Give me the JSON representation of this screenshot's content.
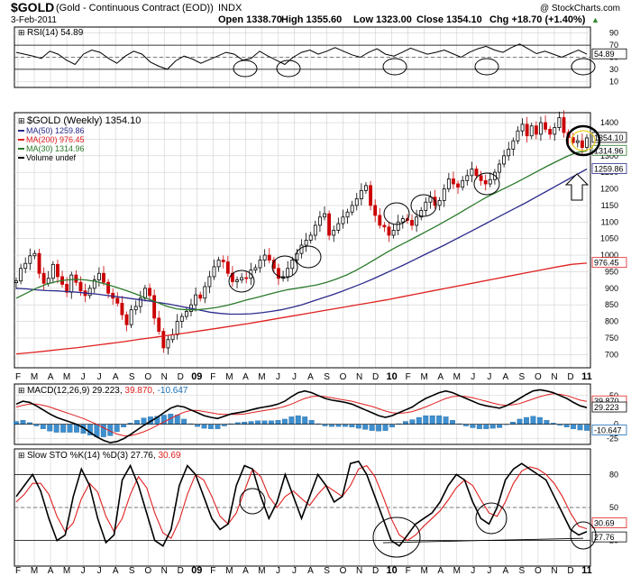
{
  "header": {
    "symbol": "$GOLD",
    "name": "(Gold - Continuous Contract (EOD))",
    "exchange": "INDX",
    "watermark": "@ StockCharts.com",
    "date": "3-Feb-2011",
    "open": "Open 1338.70",
    "high": "High 1355.60",
    "low": "Low 1323.00",
    "close": "Close 1354.10",
    "chg": "Chg +18.70 (+1.40%)",
    "chg_arrow": "▲"
  },
  "colors": {
    "up": "#000000",
    "down": "#cc0000",
    "ma50": "#2b2b8c",
    "ma200": "#e02020",
    "ma30": "#2a7a2a",
    "rsi_fill": "#5a8a5a",
    "macd_hist": "#3d8fcf",
    "grid": "#d0d0d0"
  },
  "x_axis": {
    "labels": [
      "F",
      "M",
      "A",
      "M",
      "J",
      "J",
      "A",
      "S",
      "O",
      "N",
      "D",
      "09",
      "F",
      "M",
      "A",
      "M",
      "J",
      "J",
      "A",
      "S",
      "O",
      "N",
      "D",
      "10",
      "F",
      "M",
      "A",
      "M",
      "J",
      "J",
      "A",
      "S",
      "O",
      "N",
      "D",
      "11"
    ]
  },
  "chart_data": [
    {
      "type": "line",
      "title": "RSI(14) 54.89",
      "ylim": [
        0,
        100
      ],
      "ticks": [
        "90",
        "70",
        "50",
        "30",
        "10"
      ],
      "levels": [
        70,
        30
      ],
      "value_label": "54.89",
      "values": [
        58,
        55,
        52,
        48,
        60,
        55,
        45,
        38,
        55,
        62,
        58,
        48,
        40,
        52,
        60,
        55,
        42,
        35,
        30,
        44,
        52,
        47,
        40,
        46,
        52,
        58,
        55,
        45,
        48,
        60,
        52,
        45,
        38,
        50,
        58,
        62,
        55,
        60,
        66,
        60,
        54,
        50,
        58,
        64,
        55,
        52,
        58,
        65,
        60,
        55,
        58,
        62,
        56,
        50,
        58,
        64,
        68,
        62,
        58,
        66,
        72,
        64,
        56,
        60,
        55,
        50,
        56,
        62,
        55
      ]
    },
    {
      "type": "candlestick",
      "title": "$GOLD (Weekly) 1354.10",
      "legend": [
        "MA(50) 1259.86",
        "MA(200) 976.45",
        "MA(30) 1314.96",
        "Volume undef"
      ],
      "ylim": [
        660,
        1430
      ],
      "ticks": [
        "1400",
        "1350",
        "1300",
        "1250",
        "1200",
        "1150",
        "1100",
        "1050",
        "1000",
        "950",
        "900",
        "850",
        "800",
        "750",
        "700"
      ],
      "value_labels": [
        "1354.10",
        "1314.96",
        "1259.86",
        "976.45"
      ],
      "closes": [
        922,
        960,
        975,
        998,
        1005,
        945,
        915,
        930,
        972,
        935,
        912,
        888,
        940,
        918,
        892,
        878,
        900,
        925,
        945,
        918,
        885,
        870,
        855,
        820,
        790,
        835,
        845,
        870,
        900,
        878,
        810,
        770,
        720,
        745,
        760,
        800,
        815,
        830,
        850,
        880,
        870,
        905,
        935,
        965,
        985,
        980,
        945,
        920,
        925,
        932,
        930,
        955,
        962,
        985,
        1000,
        985,
        960,
        930,
        935,
        960,
        985,
        1005,
        1030,
        1045,
        1060,
        1090,
        1115,
        1125,
        1060,
        1075,
        1095,
        1115,
        1130,
        1150,
        1170,
        1195,
        1210,
        1150,
        1120,
        1090,
        1085,
        1060,
        1075,
        1100,
        1110,
        1105,
        1090,
        1115,
        1135,
        1160,
        1175,
        1150,
        1165,
        1200,
        1230,
        1215,
        1205,
        1225,
        1240,
        1260,
        1240,
        1225,
        1215,
        1228,
        1250,
        1275,
        1300,
        1320,
        1345,
        1375,
        1395,
        1360,
        1390,
        1365,
        1400,
        1380,
        1365,
        1385,
        1415,
        1370,
        1355,
        1340,
        1345,
        1325,
        1354
      ],
      "ma50": [
        900,
        898,
        895,
        893,
        892,
        890,
        888,
        885,
        882,
        878,
        874,
        870,
        866,
        862,
        857,
        852,
        846,
        840,
        834,
        828,
        824,
        822,
        822,
        823,
        826,
        830,
        835,
        842,
        850,
        860,
        870,
        880,
        891,
        903,
        915,
        928,
        942,
        956,
        970,
        985,
        1000,
        1015,
        1030,
        1046,
        1062,
        1078,
        1094,
        1110,
        1126,
        1142,
        1158,
        1175,
        1192,
        1209,
        1226,
        1243,
        1260
      ],
      "ma200": [
        702,
        706,
        711,
        716,
        721,
        727,
        733,
        739,
        746,
        752,
        759,
        765,
        772,
        779,
        786,
        793,
        801,
        809,
        817,
        825,
        833,
        841,
        849,
        857,
        865,
        874,
        883,
        892,
        901,
        910,
        919,
        928,
        937,
        946,
        955,
        964,
        972,
        976
      ],
      "ma30": [
        870,
        885,
        900,
        912,
        920,
        925,
        927,
        925,
        920,
        912,
        903,
        893,
        882,
        870,
        858,
        846,
        838,
        835,
        835,
        838,
        842,
        848,
        856,
        865,
        872,
        880,
        888,
        895,
        900,
        905,
        910,
        918,
        928,
        940,
        955,
        972,
        990,
        1008,
        1025,
        1040,
        1056,
        1072,
        1088,
        1105,
        1122,
        1140,
        1158,
        1175,
        1190,
        1205,
        1220,
        1236,
        1252,
        1268,
        1283,
        1298,
        1310,
        1315
      ]
    },
    {
      "type": "line+bar",
      "title": "MACD(12,26,9)",
      "values_text": [
        "29.223",
        "39.870",
        "-10.647"
      ],
      "ylim": [
        -35,
        70
      ],
      "ticks": [
        "50",
        "25",
        "0",
        "-25"
      ],
      "value_labels": [
        "39.870",
        "29.223",
        "-10.647"
      ],
      "macd": [
        35,
        40,
        38,
        32,
        25,
        18,
        12,
        8,
        4,
        0,
        -6,
        -14,
        -22,
        -28,
        -32,
        -30,
        -25,
        -18,
        -10,
        -2,
        5,
        12,
        20,
        28,
        32,
        30,
        25,
        20,
        15,
        12,
        10,
        14,
        18,
        20,
        22,
        25,
        28,
        30,
        32,
        35,
        40,
        48,
        55,
        58,
        55,
        50,
        45,
        42,
        40,
        38,
        35,
        30,
        25,
        20,
        15,
        12,
        15,
        20,
        25,
        30,
        38,
        45,
        50,
        55,
        58,
        55,
        50,
        45,
        40,
        35,
        32,
        30,
        28,
        32,
        38,
        45,
        52,
        58,
        60,
        58,
        55,
        50,
        45,
        38,
        32,
        29
      ],
      "signal": [
        30,
        33,
        35,
        35,
        33,
        30,
        26,
        22,
        18,
        14,
        10,
        5,
        0,
        -6,
        -12,
        -17,
        -20,
        -20,
        -17,
        -13,
        -8,
        -2,
        4,
        10,
        16,
        21,
        24,
        24,
        22,
        20,
        18,
        17,
        17,
        17,
        18,
        20,
        22,
        24,
        26,
        28,
        31,
        35,
        40,
        45,
        48,
        49,
        48,
        46,
        44,
        42,
        40,
        37,
        34,
        31,
        27,
        23,
        20,
        19,
        20,
        22,
        26,
        30,
        35,
        40,
        45,
        48,
        49,
        48,
        46,
        43,
        40,
        37,
        34,
        33,
        34,
        36,
        40,
        44,
        48,
        51,
        53,
        52,
        50,
        46,
        42,
        39.87
      ]
    },
    {
      "type": "line",
      "title": "Slow STO %K(14) %D(3)",
      "values_text": [
        "27.76",
        "30.69"
      ],
      "ylim": [
        0,
        100
      ],
      "ticks": [
        "80",
        "50",
        "20"
      ],
      "value_labels": [
        "30.69",
        "27.76"
      ],
      "k": [
        60,
        70,
        80,
        65,
        40,
        20,
        25,
        60,
        85,
        70,
        40,
        18,
        25,
        75,
        88,
        70,
        45,
        20,
        15,
        30,
        70,
        88,
        80,
        60,
        40,
        30,
        35,
        70,
        88,
        85,
        60,
        40,
        55,
        80,
        60,
        40,
        60,
        80,
        70,
        55,
        60,
        90,
        92,
        80,
        60,
        40,
        20,
        15,
        25,
        35,
        40,
        45,
        55,
        70,
        80,
        75,
        55,
        40,
        35,
        50,
        75,
        85,
        90,
        85,
        80,
        75,
        60,
        45,
        30,
        25,
        28
      ],
      "d": [
        55,
        62,
        72,
        72,
        62,
        42,
        28,
        36,
        58,
        72,
        64,
        42,
        28,
        40,
        62,
        78,
        68,
        45,
        27,
        22,
        38,
        62,
        80,
        75,
        60,
        42,
        35,
        45,
        65,
        85,
        78,
        60,
        50,
        60,
        65,
        58,
        52,
        62,
        70,
        65,
        60,
        70,
        85,
        88,
        78,
        60,
        40,
        25,
        20,
        25,
        33,
        40,
        47,
        57,
        68,
        75,
        70,
        57,
        45,
        42,
        55,
        72,
        83,
        87,
        85,
        80,
        72,
        60,
        45,
        33,
        30.69
      ]
    }
  ]
}
